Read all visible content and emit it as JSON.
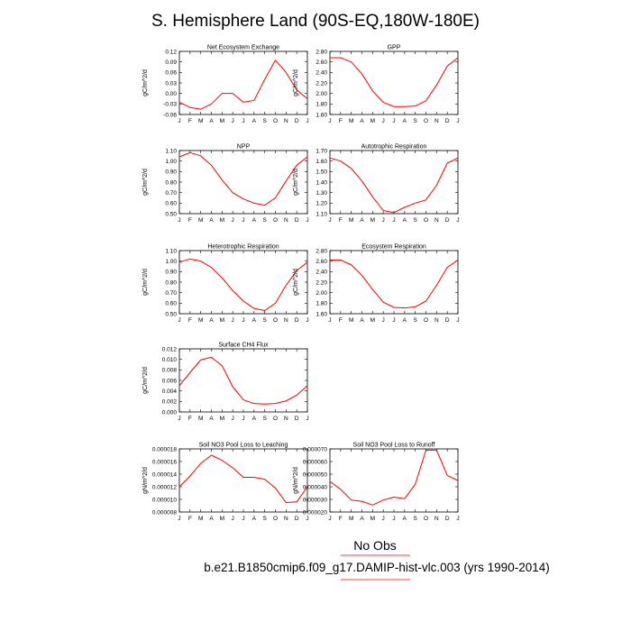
{
  "figure": {
    "title": "S. Hemisphere Land (90S-EQ,180W-180E)",
    "legend_label": "No Obs",
    "legend_color": "#ff0000",
    "caption": "b.e21.B1850cmip6.f09_g17.DAMIP-hist-vlc.003 (yrs 1990-2014)",
    "line_color": "#ff0000"
  },
  "chart_data": [
    {
      "type": "line",
      "title": "Net Ecosystem Exchange",
      "ylabel": "gC/m^2/d",
      "categories": [
        "J",
        "F",
        "M",
        "A",
        "M",
        "J",
        "J",
        "A",
        "S",
        "O",
        "N",
        "D",
        "J"
      ],
      "values": [
        -0.025,
        -0.04,
        -0.045,
        -0.03,
        0.0,
        0.0,
        -0.025,
        -0.02,
        0.04,
        0.095,
        0.06,
        0.01,
        -0.015
      ],
      "ylim": [
        -0.06,
        0.12
      ],
      "yticks": [
        "-0.06",
        "-0.03",
        "0.00",
        "0.03",
        "0.06",
        "0.09",
        "0.12"
      ]
    },
    {
      "type": "line",
      "title": "GPP",
      "ylabel": "gC/m^2/d",
      "categories": [
        "J",
        "F",
        "M",
        "A",
        "M",
        "J",
        "J",
        "A",
        "S",
        "O",
        "N",
        "D",
        "J"
      ],
      "values": [
        2.68,
        2.68,
        2.6,
        2.37,
        2.05,
        1.83,
        1.75,
        1.75,
        1.76,
        1.86,
        2.16,
        2.52,
        2.68
      ],
      "ylim": [
        1.6,
        2.8
      ],
      "yticks": [
        "1.60",
        "1.80",
        "2.00",
        "2.20",
        "2.40",
        "2.60",
        "2.80"
      ]
    },
    {
      "type": "line",
      "title": "NPP",
      "ylabel": "gC/m^2/d",
      "categories": [
        "J",
        "F",
        "M",
        "A",
        "M",
        "J",
        "J",
        "A",
        "S",
        "O",
        "N",
        "D",
        "J"
      ],
      "values": [
        1.04,
        1.08,
        1.05,
        0.96,
        0.82,
        0.7,
        0.64,
        0.6,
        0.58,
        0.65,
        0.81,
        0.96,
        1.04
      ],
      "ylim": [
        0.5,
        1.1
      ],
      "yticks": [
        "0.50",
        "0.60",
        "0.70",
        "0.80",
        "0.90",
        "1.00",
        "1.10"
      ]
    },
    {
      "type": "line",
      "title": "Autotrophic Respiration",
      "ylabel": "gC/m^2/d",
      "categories": [
        "J",
        "F",
        "M",
        "A",
        "M",
        "J",
        "J",
        "A",
        "S",
        "O",
        "N",
        "D",
        "J"
      ],
      "values": [
        1.63,
        1.6,
        1.53,
        1.41,
        1.26,
        1.13,
        1.11,
        1.16,
        1.2,
        1.23,
        1.37,
        1.58,
        1.63
      ],
      "ylim": [
        1.1,
        1.7
      ],
      "yticks": [
        "1.10",
        "1.20",
        "1.30",
        "1.40",
        "1.50",
        "1.60",
        "1.70"
      ]
    },
    {
      "type": "line",
      "title": "Heterotrophic Respiration",
      "ylabel": "gC/m^2/d",
      "categories": [
        "J",
        "F",
        "M",
        "A",
        "M",
        "J",
        "J",
        "A",
        "S",
        "O",
        "N",
        "D",
        "J"
      ],
      "values": [
        0.99,
        1.02,
        1.0,
        0.94,
        0.84,
        0.72,
        0.62,
        0.55,
        0.53,
        0.6,
        0.77,
        0.91,
        0.99
      ],
      "ylim": [
        0.5,
        1.1
      ],
      "yticks": [
        "0.50",
        "0.60",
        "0.70",
        "0.80",
        "0.90",
        "1.00",
        "1.10"
      ]
    },
    {
      "type": "line",
      "title": "Ecosystem Respiration",
      "ylabel": "gC/m^2/d",
      "categories": [
        "J",
        "F",
        "M",
        "A",
        "M",
        "J",
        "J",
        "A",
        "S",
        "O",
        "N",
        "D",
        "J"
      ],
      "values": [
        2.62,
        2.62,
        2.53,
        2.33,
        2.06,
        1.82,
        1.72,
        1.71,
        1.73,
        1.84,
        2.14,
        2.48,
        2.62
      ],
      "ylim": [
        1.6,
        2.8
      ],
      "yticks": [
        "1.60",
        "1.80",
        "2.00",
        "2.20",
        "2.40",
        "2.60",
        "2.80"
      ]
    },
    {
      "type": "line",
      "title": "Surface CH4 Flux",
      "ylabel": "gC/m^2/d",
      "categories": [
        "J",
        "F",
        "M",
        "A",
        "M",
        "J",
        "J",
        "A",
        "S",
        "O",
        "N",
        "D",
        "J"
      ],
      "values": [
        0.005,
        0.0075,
        0.0099,
        0.0104,
        0.0088,
        0.0048,
        0.0023,
        0.0016,
        0.0015,
        0.0016,
        0.0021,
        0.0032,
        0.005
      ],
      "ylim": [
        0.0,
        0.012
      ],
      "yticks": [
        "0.000",
        "0.002",
        "0.004",
        "0.006",
        "0.008",
        "0.010",
        "0.012"
      ]
    },
    {
      "type": "line",
      "title": "Soil NO3 Pool Loss to Leaching",
      "ylabel": "gN/m^2/d",
      "categories": [
        "J",
        "F",
        "M",
        "A",
        "M",
        "J",
        "J",
        "A",
        "S",
        "O",
        "N",
        "D",
        "J"
      ],
      "values": [
        1.2e-05,
        1.37e-05,
        1.57e-05,
        1.7e-05,
        1.62e-05,
        1.5e-05,
        1.35e-05,
        1.35e-05,
        1.32e-05,
        1.18e-05,
        9.5e-06,
        9.6e-06,
        1.2e-05
      ],
      "ylim": [
        8e-06,
        1.8e-05
      ],
      "yticks": [
        "0.000008",
        "0.000010",
        "0.000012",
        "0.000014",
        "0.000016",
        "0.000018"
      ]
    },
    {
      "type": "line",
      "title": "Soil NO3 Pool Loss to Runoff",
      "ylabel": "gN/m^2/d",
      "categories": [
        "J",
        "F",
        "M",
        "A",
        "M",
        "J",
        "J",
        "A",
        "S",
        "O",
        "N",
        "D",
        "J"
      ],
      "values": [
        4.42e-05,
        3.8e-05,
        2.95e-05,
        2.85e-05,
        2.55e-05,
        2.95e-05,
        3.18e-05,
        3.05e-05,
        4.2e-05,
        6.9e-05,
        6.9e-05,
        4.9e-05,
        4.5e-05
      ],
      "ylim": [
        2e-05,
        7e-05
      ],
      "yticks": [
        "0.000020",
        "0.000030",
        "0.000040",
        "0.000050",
        "0.000060",
        "0.000070"
      ]
    }
  ]
}
